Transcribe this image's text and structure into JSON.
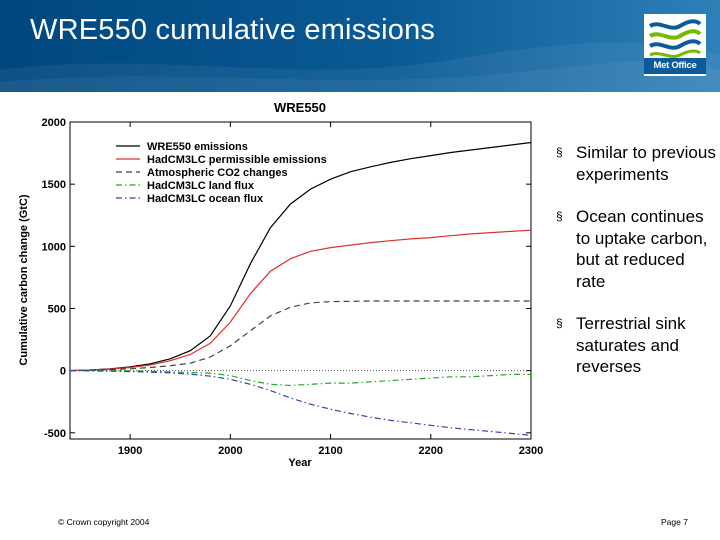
{
  "slide": {
    "title": "WRE550 cumulative emissions",
    "logo_text": "Met Office",
    "footer_left": "© Crown copyright 2004",
    "footer_right": "Page 7",
    "header_color": "#00477f"
  },
  "bullets": [
    {
      "marker": "§",
      "text": "Similar to previous experiments"
    },
    {
      "marker": "§",
      "text": "Ocean continues to uptake carbon, but at reduced rate"
    },
    {
      "marker": "§",
      "text": "Terrestrial sink saturates and reverses"
    }
  ],
  "chart_data": {
    "type": "line",
    "title": "WRE550",
    "xlabel": "Year",
    "ylabel": "Cumulative carbon change (GtC)",
    "xlim": [
      1840,
      2300
    ],
    "ylim": [
      -550,
      2000
    ],
    "xticks": [
      1900,
      2000,
      2100,
      2200,
      2300
    ],
    "yticks": [
      -500,
      0,
      500,
      1000,
      1500,
      2000
    ],
    "zero_line": true,
    "grid": false,
    "legend_position": "top-left",
    "series": [
      {
        "name": "WRE550 emissions",
        "color": "#000000",
        "dash": "solid",
        "x": [
          1840,
          1860,
          1880,
          1900,
          1920,
          1940,
          1960,
          1980,
          2000,
          2020,
          2040,
          2060,
          2080,
          2100,
          2120,
          2140,
          2160,
          2180,
          2200,
          2220,
          2240,
          2260,
          2280,
          2300
        ],
        "y": [
          0,
          5,
          15,
          30,
          55,
          95,
          160,
          280,
          520,
          860,
          1150,
          1340,
          1460,
          1540,
          1600,
          1640,
          1675,
          1705,
          1730,
          1755,
          1775,
          1795,
          1815,
          1835
        ]
      },
      {
        "name": "HadCM3LC permissible emissions",
        "color": "#e0302a",
        "dash": "solid",
        "x": [
          1840,
          1860,
          1880,
          1900,
          1920,
          1940,
          1960,
          1980,
          2000,
          2020,
          2040,
          2060,
          2080,
          2100,
          2120,
          2140,
          2160,
          2180,
          2200,
          2220,
          2240,
          2260,
          2280,
          2300
        ],
        "y": [
          0,
          5,
          12,
          25,
          45,
          80,
          130,
          220,
          390,
          620,
          800,
          900,
          960,
          990,
          1010,
          1030,
          1045,
          1060,
          1070,
          1085,
          1100,
          1110,
          1120,
          1130
        ]
      },
      {
        "name": "Atmospheric CO2 changes",
        "color": "#444444",
        "dash": "dashed",
        "x": [
          1840,
          1860,
          1880,
          1900,
          1920,
          1940,
          1960,
          1980,
          2000,
          2020,
          2040,
          2060,
          2080,
          2100,
          2120,
          2140,
          2160,
          2180,
          2200,
          2220,
          2240,
          2260,
          2280,
          2300
        ],
        "y": [
          0,
          3,
          8,
          15,
          25,
          40,
          60,
          110,
          200,
          320,
          440,
          510,
          545,
          555,
          558,
          560,
          560,
          560,
          560,
          560,
          560,
          560,
          560,
          560
        ]
      },
      {
        "name": "HadCM3LC land flux",
        "color": "#22aa22",
        "dash": "dashdot",
        "x": [
          1840,
          1860,
          1880,
          1900,
          1920,
          1940,
          1960,
          1980,
          2000,
          2020,
          2040,
          2060,
          2080,
          2100,
          2120,
          2140,
          2160,
          2180,
          2200,
          2220,
          2240,
          2260,
          2280,
          2300
        ],
        "y": [
          0,
          0,
          0,
          -2,
          -5,
          -10,
          -15,
          -20,
          -40,
          -80,
          -110,
          -120,
          -110,
          -100,
          -100,
          -90,
          -80,
          -70,
          -60,
          -50,
          -50,
          -40,
          -30,
          -30
        ]
      },
      {
        "name": "HadCM3LC ocean flux",
        "color": "#3344aa",
        "dash": "dashdot",
        "x": [
          1840,
          1860,
          1880,
          1900,
          1920,
          1940,
          1960,
          1980,
          2000,
          2020,
          2040,
          2060,
          2080,
          2100,
          2120,
          2140,
          2160,
          2180,
          2200,
          2220,
          2240,
          2260,
          2280,
          2300
        ],
        "y": [
          0,
          -2,
          -5,
          -8,
          -12,
          -18,
          -28,
          -45,
          -70,
          -110,
          -160,
          -220,
          -270,
          -310,
          -345,
          -375,
          -400,
          -420,
          -440,
          -460,
          -475,
          -490,
          -505,
          -520
        ]
      }
    ]
  }
}
